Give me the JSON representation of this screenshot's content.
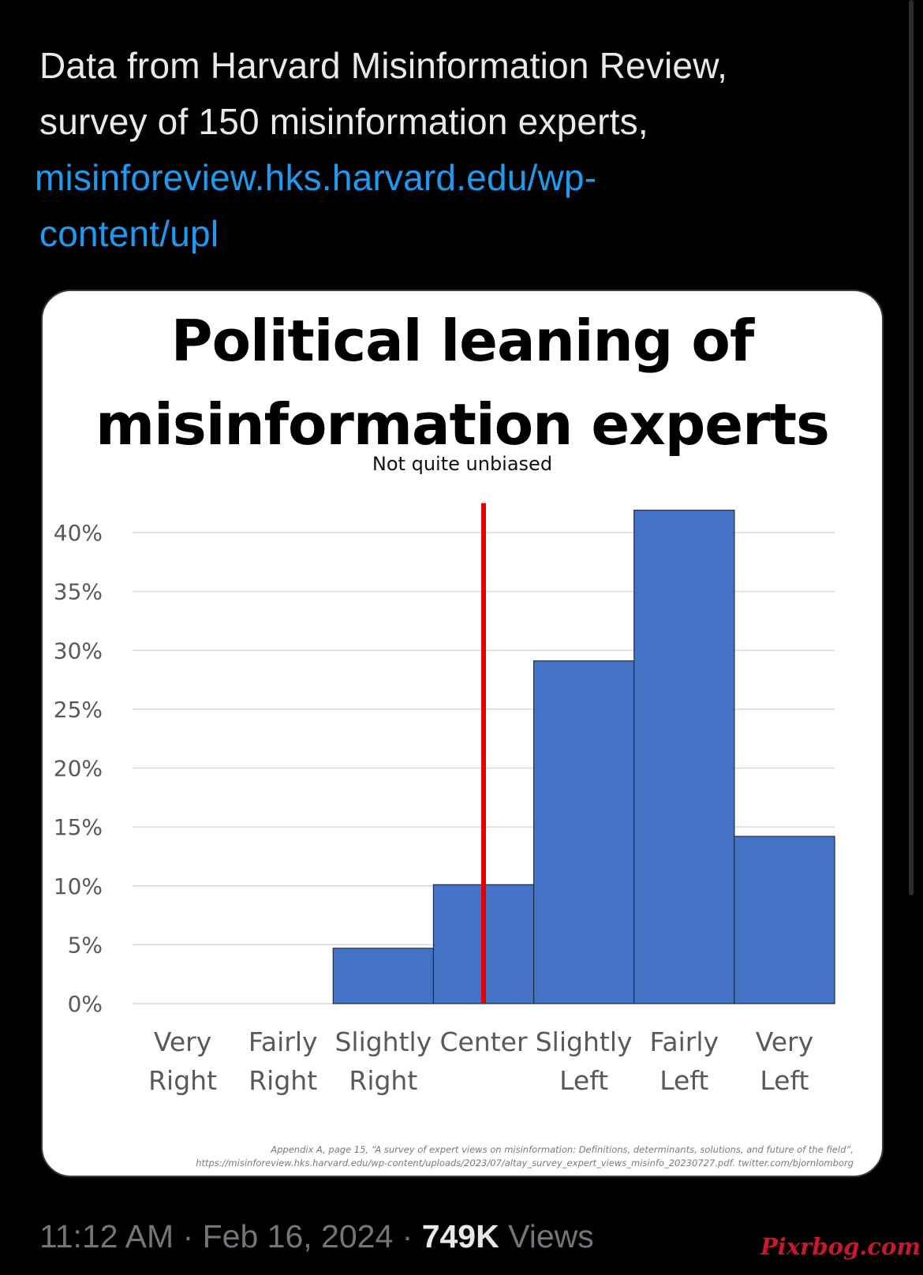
{
  "tweet": {
    "text_line1": "Data from Harvard Misinformation Review,",
    "text_line2": "survey of 150 misinformation experts,",
    "link_line1": "misinforeview.hks.harvard.edu/wp-",
    "link_line2": "content/upl"
  },
  "chart_data": {
    "type": "bar",
    "title_line1": "Political leaning of",
    "title_line2": "misinformation experts",
    "subtitle": "Not quite unbiased",
    "categories": [
      "Very Right",
      "Fairly Right",
      "Slightly Right",
      "Center",
      "Slightly Left",
      "Fairly Left",
      "Very Left"
    ],
    "category_lines": [
      [
        "Very",
        "Right"
      ],
      [
        "Fairly",
        "Right"
      ],
      [
        "Slightly",
        "Right"
      ],
      [
        "Center",
        ""
      ],
      [
        "Slightly",
        "Left"
      ],
      [
        "Fairly",
        "Left"
      ],
      [
        "Very",
        "Left"
      ]
    ],
    "values": [
      0,
      0,
      4.7,
      10.1,
      29.1,
      41.9,
      14.2
    ],
    "ylim": [
      0,
      40
    ],
    "yticks": [
      0,
      5,
      10,
      15,
      20,
      25,
      30,
      35,
      40
    ],
    "ytick_labels": [
      "0%",
      "5%",
      "10%",
      "15%",
      "20%",
      "25%",
      "30%",
      "35%",
      "40%"
    ],
    "xlabel": "",
    "ylabel": "",
    "grid": true,
    "bar_color": "#4472c4",
    "marker_line": {
      "position": "Center",
      "color": "#e00000"
    },
    "footnote_line1": "Appendix A, page 15, “A survey of expert views on misinformation: Definitions, determinants, solutions, and future of the field”,",
    "footnote_line2": "https://misinforeview.hks.harvard.edu/wp-content/uploads/2023/07/altay_survey_expert_views_misinfo_20230727.pdf. twitter.com/bjornlomborg"
  },
  "meta": {
    "time": "11:12 AM",
    "separator": " · ",
    "date": "Feb 16, 2024",
    "views_count": "749K",
    "views_label": "Views"
  },
  "watermark": "Pixrbog.com"
}
